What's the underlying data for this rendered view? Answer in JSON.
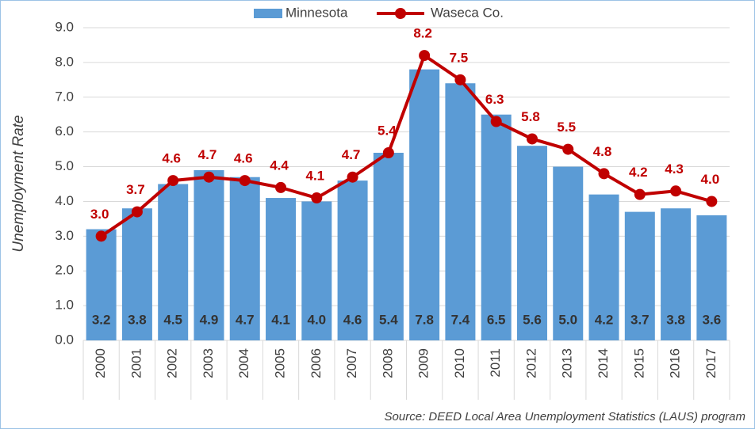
{
  "chart_data": {
    "type": "bar-line",
    "y_label": "Unemployment Rate",
    "source": "Source: DEED Local Area Unemployment Statistics (LAUS) program",
    "categories": [
      "2000",
      "2001",
      "2002",
      "2003",
      "2004",
      "2005",
      "2006",
      "2007",
      "2008",
      "2009",
      "2010",
      "2011",
      "2012",
      "2013",
      "2014",
      "2015",
      "2016",
      "2017"
    ],
    "series": [
      {
        "name": "Minnesota",
        "type": "bar",
        "color": "#5b9bd5",
        "values": [
          3.2,
          3.8,
          4.5,
          4.9,
          4.7,
          4.1,
          4.0,
          4.6,
          5.4,
          7.8,
          7.4,
          6.5,
          5.6,
          5.0,
          4.2,
          3.7,
          3.8,
          3.6
        ],
        "value_labels": [
          "3.2",
          "3.8",
          "4.5",
          "4.9",
          "4.7",
          "4.1",
          "4.0",
          "4.6",
          "5.4",
          "7.8",
          "7.4",
          "6.5",
          "5.6",
          "5.0",
          "4.2",
          "3.7",
          "3.8",
          "3.6"
        ]
      },
      {
        "name": "Waseca Co.",
        "type": "line",
        "color": "#c00000",
        "values": [
          3.0,
          3.7,
          4.6,
          4.7,
          4.6,
          4.4,
          4.1,
          4.7,
          5.4,
          8.2,
          7.5,
          6.3,
          5.8,
          5.5,
          4.8,
          4.2,
          4.3,
          4.0
        ],
        "value_labels": [
          "3.0",
          "3.7",
          "4.6",
          "4.7",
          "4.6",
          "4.4",
          "4.1",
          "4.7",
          "5.4",
          "8.2",
          "7.5",
          "6.3",
          "5.8",
          "5.5",
          "4.8",
          "4.2",
          "4.3",
          "4.0"
        ]
      }
    ],
    "ylim": [
      0,
      9
    ],
    "yticks": [
      {
        "value": 0,
        "label": "0.0"
      },
      {
        "value": 1,
        "label": "1.0"
      },
      {
        "value": 2,
        "label": "2.0"
      },
      {
        "value": 3,
        "label": "3.0"
      },
      {
        "value": 4,
        "label": "4.0"
      },
      {
        "value": 5,
        "label": "5.0"
      },
      {
        "value": 6,
        "label": "6.0"
      },
      {
        "value": 7,
        "label": "7.0"
      },
      {
        "value": 8,
        "label": "8.0"
      },
      {
        "value": 9,
        "label": "9.0"
      }
    ],
    "grid": true,
    "legend": "top"
  }
}
